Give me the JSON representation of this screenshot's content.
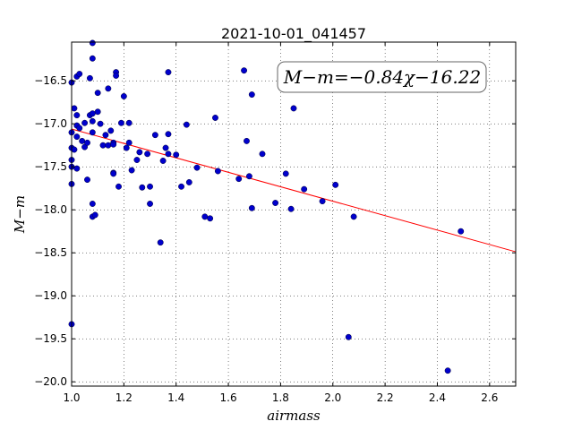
{
  "chart_data": {
    "type": "scatter",
    "title": "2021-10-01_041457",
    "xlabel": "airmass",
    "ylabel": "M−m",
    "xlim": [
      1.0,
      2.7
    ],
    "ylim": [
      -20.05,
      -16.05
    ],
    "y_inverted": false,
    "grid": true,
    "xticks": [
      1.0,
      1.2,
      1.4,
      1.6,
      1.8,
      2.0,
      2.2,
      2.4,
      2.6
    ],
    "xtick_labels": [
      "1.0",
      "1.2",
      "1.4",
      "1.6",
      "1.8",
      "2.0",
      "2.2",
      "2.4",
      "2.6"
    ],
    "yticks": [
      -16.5,
      -17.0,
      -17.5,
      -18.0,
      -18.5,
      -19.0,
      -19.5,
      -20.0
    ],
    "ytick_labels": [
      "−16.5",
      "−17.0",
      "−17.5",
      "−18.0",
      "−18.5",
      "−19.0",
      "−19.5",
      "−20.0"
    ],
    "fit_annotation": "M−m=−0.84χ−16.22",
    "fit": {
      "slope": -0.84,
      "intercept": -16.22,
      "color": "#ff0000"
    },
    "point_color": "#0000cc",
    "points": [
      [
        1.0,
        -16.52
      ],
      [
        1.0,
        -17.1
      ],
      [
        1.0,
        -17.28
      ],
      [
        1.0,
        -17.42
      ],
      [
        1.0,
        -17.5
      ],
      [
        1.0,
        -17.7
      ],
      [
        1.0,
        -19.33
      ],
      [
        1.01,
        -16.82
      ],
      [
        1.01,
        -17.3
      ],
      [
        1.02,
        -16.45
      ],
      [
        1.02,
        -16.9
      ],
      [
        1.02,
        -17.02
      ],
      [
        1.02,
        -17.15
      ],
      [
        1.02,
        -17.52
      ],
      [
        1.03,
        -16.42
      ],
      [
        1.03,
        -17.05
      ],
      [
        1.04,
        -17.2
      ],
      [
        1.05,
        -16.99
      ],
      [
        1.05,
        -17.27
      ],
      [
        1.06,
        -17.22
      ],
      [
        1.06,
        -17.65
      ],
      [
        1.07,
        -16.47
      ],
      [
        1.07,
        -16.9
      ],
      [
        1.08,
        -16.06
      ],
      [
        1.08,
        -16.24
      ],
      [
        1.08,
        -16.88
      ],
      [
        1.08,
        -16.97
      ],
      [
        1.08,
        -17.1
      ],
      [
        1.08,
        -17.93
      ],
      [
        1.08,
        -18.08
      ],
      [
        1.09,
        -18.06
      ],
      [
        1.1,
        -16.86
      ],
      [
        1.1,
        -16.64
      ],
      [
        1.11,
        -17.0
      ],
      [
        1.12,
        -17.25
      ],
      [
        1.13,
        -17.13
      ],
      [
        1.14,
        -16.59
      ],
      [
        1.14,
        -17.25
      ],
      [
        1.15,
        -17.08
      ],
      [
        1.16,
        -17.22
      ],
      [
        1.16,
        -17.24
      ],
      [
        1.16,
        -17.57
      ],
      [
        1.16,
        -17.58
      ],
      [
        1.17,
        -16.4
      ],
      [
        1.17,
        -16.44
      ],
      [
        1.18,
        -17.73
      ],
      [
        1.19,
        -16.99
      ],
      [
        1.2,
        -16.68
      ],
      [
        1.21,
        -17.28
      ],
      [
        1.22,
        -16.99
      ],
      [
        1.22,
        -17.22
      ],
      [
        1.23,
        -17.54
      ],
      [
        1.25,
        -17.42
      ],
      [
        1.26,
        -17.33
      ],
      [
        1.27,
        -17.74
      ],
      [
        1.29,
        -17.35
      ],
      [
        1.3,
        -17.73
      ],
      [
        1.3,
        -17.93
      ],
      [
        1.32,
        -17.13
      ],
      [
        1.34,
        -18.38
      ],
      [
        1.35,
        -17.43
      ],
      [
        1.36,
        -17.28
      ],
      [
        1.37,
        -17.35
      ],
      [
        1.37,
        -16.4
      ],
      [
        1.37,
        -17.12
      ],
      [
        1.4,
        -17.36
      ],
      [
        1.42,
        -17.73
      ],
      [
        1.44,
        -17.01
      ],
      [
        1.45,
        -17.68
      ],
      [
        1.48,
        -17.51
      ],
      [
        1.51,
        -18.08
      ],
      [
        1.53,
        -18.1
      ],
      [
        1.55,
        -16.93
      ],
      [
        1.56,
        -17.55
      ],
      [
        1.64,
        -17.64
      ],
      [
        1.66,
        -16.38
      ],
      [
        1.67,
        -17.2
      ],
      [
        1.68,
        -17.61
      ],
      [
        1.69,
        -17.98
      ],
      [
        1.69,
        -16.66
      ],
      [
        1.73,
        -17.35
      ],
      [
        1.78,
        -17.92
      ],
      [
        1.82,
        -17.58
      ],
      [
        1.84,
        -17.99
      ],
      [
        1.85,
        -16.82
      ],
      [
        1.89,
        -17.76
      ],
      [
        1.96,
        -17.9
      ],
      [
        2.01,
        -17.71
      ],
      [
        2.06,
        -19.48
      ],
      [
        2.08,
        -18.08
      ],
      [
        2.44,
        -19.87
      ],
      [
        2.49,
        -18.25
      ]
    ]
  }
}
